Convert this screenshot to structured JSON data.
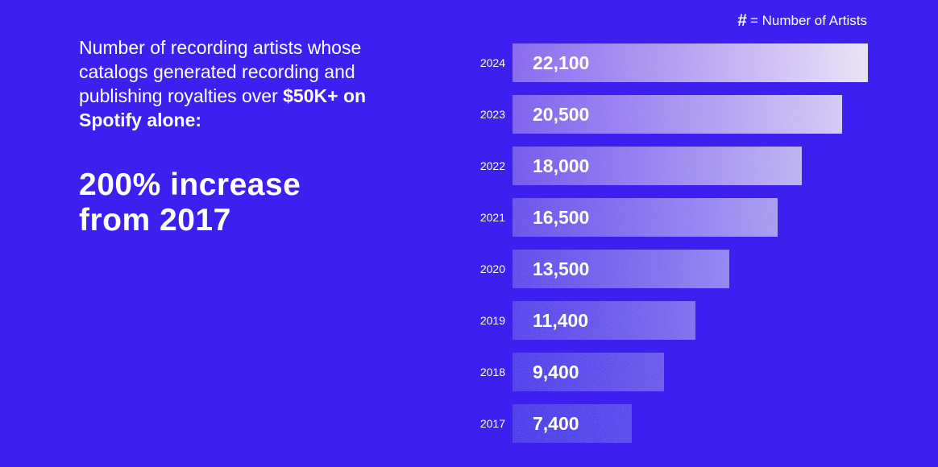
{
  "headline": {
    "text_plain": "Number of recording artists whose catalogs generated recording and publishing royalties over ",
    "text_bold": "$50K+ on Spotify alone:"
  },
  "big_stat": {
    "line1": "200% increase",
    "line2": "from 2017"
  },
  "legend": {
    "symbol": "#",
    "label": "= Number of Artists"
  },
  "colors": {
    "background": "#3d1ff0",
    "bar_light": "#eee6fb",
    "bar_dark": "#3a22f0"
  },
  "chart_data": {
    "type": "bar",
    "orientation": "horizontal",
    "categories": [
      "2024",
      "2023",
      "2022",
      "2021",
      "2020",
      "2019",
      "2018",
      "2017"
    ],
    "values": [
      22100,
      20500,
      18000,
      16500,
      13500,
      11400,
      9400,
      7400
    ],
    "value_labels": [
      "22,100",
      "20,500",
      "18,000",
      "16,500",
      "13,500",
      "11,400",
      "9,400",
      "7,400"
    ],
    "xlim": [
      0,
      22100
    ],
    "grid": false
  }
}
